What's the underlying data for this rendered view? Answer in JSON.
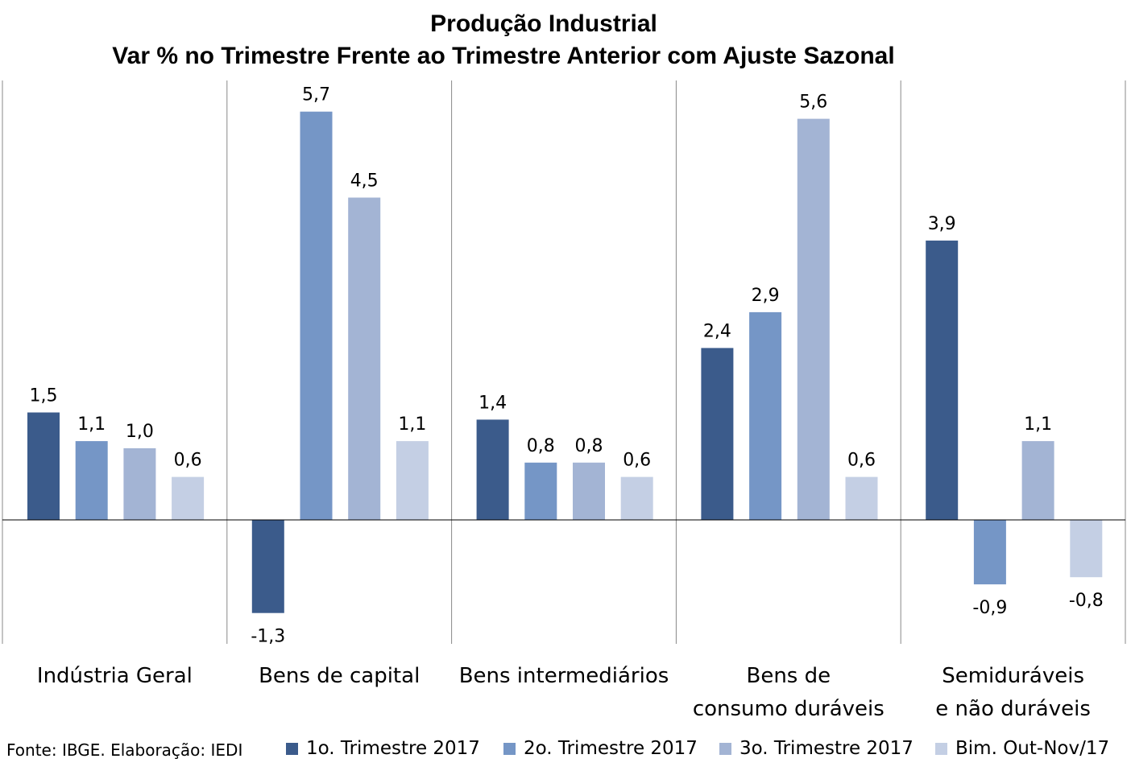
{
  "title": "Produção Industrial",
  "subtitle": "Var % no Trimestre Frente ao Trimestre Anterior com Ajuste Sazonal",
  "source": "Fonte: IBGE. Elaboração: IEDI",
  "colors": {
    "series1": "#3b5b8b",
    "series2": "#7596c6",
    "series3": "#a3b4d4",
    "series4": "#c4cfe4",
    "grid": "#888888",
    "axis": "#000000"
  },
  "chart_data": {
    "type": "bar",
    "categories": [
      [
        "Indústria Geral"
      ],
      [
        "Bens de capital"
      ],
      [
        "Bens intermediários"
      ],
      [
        "Bens de",
        "consumo duráveis"
      ],
      [
        "Semiduráveis",
        "e não duráveis"
      ]
    ],
    "series": [
      {
        "name": "1o. Trimestre 2017",
        "values": [
          1.5,
          -1.3,
          1.4,
          2.4,
          3.9
        ],
        "labels": [
          "1,5",
          "-1,3",
          "1,4",
          "2,4",
          "3,9"
        ]
      },
      {
        "name": "2o. Trimestre 2017",
        "values": [
          1.1,
          5.7,
          0.8,
          2.9,
          -0.9
        ],
        "labels": [
          "1,1",
          "5,7",
          "0,8",
          "2,9",
          "-0,9"
        ]
      },
      {
        "name": "3o. Trimestre 2017",
        "values": [
          1.0,
          4.5,
          0.8,
          5.6,
          1.1
        ],
        "labels": [
          "1,0",
          "4,5",
          "0,8",
          "5,6",
          "1,1"
        ]
      },
      {
        "name": "Bim. Out-Nov/17",
        "values": [
          0.6,
          1.1,
          0.6,
          0.6,
          -0.8
        ],
        "labels": [
          "0,6",
          "1,1",
          "0,6",
          "0,6",
          "-0,8"
        ]
      }
    ],
    "ylim": [
      -1.65,
      6.1
    ],
    "grid": "vertical separators between categories",
    "legend": "bottom"
  }
}
